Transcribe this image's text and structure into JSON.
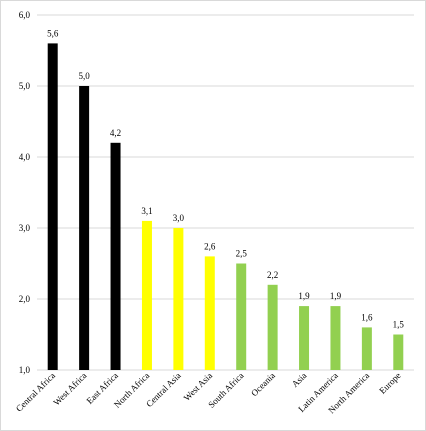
{
  "chart_data": {
    "type": "bar",
    "title": "",
    "xlabel": "",
    "ylabel": "",
    "ylim": [
      1.0,
      6.0
    ],
    "y_ticks": [
      "1,0",
      "2,0",
      "3,0",
      "4,0",
      "5,0",
      "6,0"
    ],
    "grid": true,
    "legend": "none",
    "categories": [
      "Central Africa",
      "West Africa",
      "East Africa",
      "North Africa",
      "Central Asia",
      "West Asia",
      "South Africa",
      "Oceania",
      "Asia",
      "Latin America",
      "North America",
      "Europe"
    ],
    "values": [
      5.6,
      5.0,
      4.2,
      3.1,
      3.0,
      2.6,
      2.5,
      2.2,
      1.9,
      1.9,
      1.6,
      1.5
    ],
    "value_labels": [
      "5,6",
      "5,0",
      "4,2",
      "3,1",
      "3,0",
      "2,6",
      "2,5",
      "2,2",
      "1,9",
      "1,9",
      "1,6",
      "1,5"
    ],
    "bar_colors": [
      "#000000",
      "#000000",
      "#000000",
      "#ffff00",
      "#ffff00",
      "#ffff00",
      "#92d050",
      "#92d050",
      "#92d050",
      "#92d050",
      "#92d050",
      "#92d050"
    ],
    "gridline_color": "#d9d9d9"
  }
}
